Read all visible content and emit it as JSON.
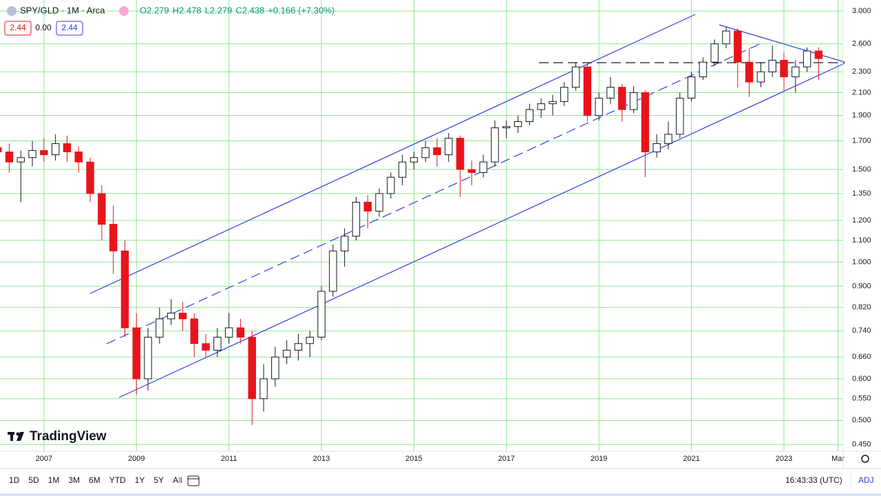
{
  "header": {
    "symbol": "SPY/GLD · 1M · Arca",
    "ohlc": [
      "O2.279",
      "H2.478",
      "L2.279",
      "C2.438",
      "+0.166 (+7.30%)"
    ],
    "badges": [
      "2.44",
      "0.00",
      "2.44"
    ],
    "logo": "TradingView"
  },
  "toolbar": {
    "ranges": [
      "1D",
      "5D",
      "1M",
      "3M",
      "6M",
      "YTD",
      "1Y",
      "5Y",
      "All"
    ],
    "time": "16:43:33 (UTC)",
    "adj": "ADJ"
  },
  "chart_data": {
    "type": "candlestick",
    "log_scale": true,
    "grid": true,
    "up_color": "#ffffff",
    "up_border": "#131722",
    "down_color": "#e8141b",
    "grid_color": "#8ee88e",
    "xlim": [
      2006.05,
      2024.28
    ],
    "ylim": [
      0.437,
      3.15
    ],
    "xticks": [
      2007,
      2009,
      2011,
      2013,
      2015,
      2017,
      2019,
      2021,
      2023,
      {
        "value": 2024.17,
        "label": "Mar"
      }
    ],
    "yticks": [
      {
        "value": 0.45,
        "label": "0.450"
      },
      {
        "value": 0.5,
        "label": "0.500"
      },
      {
        "value": 0.55,
        "label": "0.550"
      },
      {
        "value": 0.6,
        "label": "0.600"
      },
      {
        "value": 0.66,
        "label": "0.660"
      },
      {
        "value": 0.74,
        "label": "0.740"
      },
      {
        "value": 0.82,
        "label": "0.820"
      },
      {
        "value": 0.9,
        "label": "0.900"
      },
      {
        "value": 1,
        "label": "1.000"
      },
      {
        "value": 1.1,
        "label": "1.100"
      },
      {
        "value": 1.2,
        "label": "1.200"
      },
      {
        "value": 1.35,
        "label": "1.350"
      },
      {
        "value": 1.5,
        "label": "1.500"
      },
      {
        "value": 1.7,
        "label": "1.700"
      },
      {
        "value": 1.9,
        "label": "1.900"
      },
      {
        "value": 2.1,
        "label": "2.100"
      },
      {
        "value": 2.3,
        "label": "2.300"
      },
      {
        "value": 2.6,
        "label": "2.600"
      },
      {
        "value": 3,
        "label": "3.000"
      }
    ],
    "x": [
      2006.0,
      2006.25,
      2006.5,
      2006.75,
      2007.0,
      2007.25,
      2007.5,
      2007.75,
      2008.0,
      2008.25,
      2008.5,
      2008.75,
      2009.0,
      2009.25,
      2009.5,
      2009.75,
      2010.0,
      2010.25,
      2010.5,
      2010.75,
      2011.0,
      2011.25,
      2011.5,
      2011.75,
      2012.0,
      2012.25,
      2012.5,
      2012.75,
      2013.0,
      2013.25,
      2013.5,
      2013.75,
      2014.0,
      2014.25,
      2014.5,
      2014.75,
      2015.0,
      2015.25,
      2015.5,
      2015.75,
      2016.0,
      2016.25,
      2016.5,
      2016.75,
      2017.0,
      2017.25,
      2017.5,
      2017.75,
      2018.0,
      2018.25,
      2018.5,
      2018.75,
      2019.0,
      2019.25,
      2019.5,
      2019.75,
      2020.0,
      2020.25,
      2020.5,
      2020.75,
      2021.0,
      2021.25,
      2021.5,
      2021.75,
      2022.0,
      2022.25,
      2022.5,
      2022.75,
      2023.0,
      2023.25,
      2023.5,
      2023.75
    ],
    "open": [
      1.65,
      1.62,
      1.55,
      1.58,
      1.63,
      1.6,
      1.68,
      1.62,
      1.55,
      1.35,
      1.18,
      1.05,
      0.75,
      0.6,
      0.72,
      0.78,
      0.8,
      0.78,
      0.7,
      0.68,
      0.72,
      0.75,
      0.72,
      0.55,
      0.6,
      0.66,
      0.68,
      0.7,
      0.72,
      0.88,
      1.05,
      1.12,
      1.3,
      1.25,
      1.35,
      1.45,
      1.55,
      1.58,
      1.65,
      1.6,
      1.72,
      1.5,
      1.48,
      1.55,
      1.8,
      1.81,
      1.85,
      1.95,
      2.0,
      2.02,
      2.15,
      2.35,
      1.9,
      2.05,
      2.15,
      1.95,
      2.1,
      1.62,
      1.68,
      1.75,
      2.05,
      2.25,
      2.4,
      2.6,
      2.75,
      2.4,
      2.2,
      2.3,
      2.42,
      2.25,
      2.35,
      2.52
    ],
    "high": [
      1.72,
      1.68,
      1.63,
      1.7,
      1.72,
      1.75,
      1.74,
      1.66,
      1.58,
      1.4,
      1.28,
      1.1,
      0.8,
      0.75,
      0.82,
      0.85,
      0.84,
      0.8,
      0.73,
      0.75,
      0.8,
      0.78,
      0.74,
      0.64,
      0.69,
      0.71,
      0.73,
      0.74,
      0.9,
      1.08,
      1.16,
      1.33,
      1.34,
      1.38,
      1.48,
      1.6,
      1.62,
      1.7,
      1.72,
      1.76,
      1.74,
      1.56,
      1.6,
      1.86,
      1.86,
      1.9,
      2.0,
      2.05,
      2.08,
      2.2,
      2.4,
      2.38,
      2.1,
      2.25,
      2.18,
      2.16,
      2.12,
      1.75,
      1.85,
      2.1,
      2.3,
      2.45,
      2.65,
      2.8,
      2.78,
      2.55,
      2.4,
      2.58,
      2.5,
      2.42,
      2.56,
      2.56
    ],
    "low": [
      1.56,
      1.48,
      1.3,
      1.52,
      1.55,
      1.56,
      1.55,
      1.48,
      1.3,
      1.1,
      0.95,
      0.72,
      0.56,
      0.57,
      0.7,
      0.76,
      0.74,
      0.66,
      0.66,
      0.66,
      0.7,
      0.7,
      0.49,
      0.52,
      0.58,
      0.64,
      0.65,
      0.66,
      0.71,
      0.86,
      0.98,
      1.1,
      1.16,
      1.22,
      1.32,
      1.4,
      1.5,
      1.55,
      1.52,
      1.55,
      1.33,
      1.4,
      1.45,
      1.52,
      1.72,
      1.76,
      1.82,
      1.88,
      1.9,
      1.98,
      2.12,
      1.85,
      1.86,
      2.0,
      1.85,
      1.92,
      1.45,
      1.58,
      1.64,
      1.72,
      2.02,
      2.22,
      2.36,
      2.55,
      2.15,
      2.06,
      2.15,
      2.25,
      2.12,
      2.1,
      2.3,
      2.22
    ],
    "close": [
      1.62,
      1.55,
      1.58,
      1.63,
      1.6,
      1.68,
      1.62,
      1.55,
      1.35,
      1.18,
      1.05,
      0.75,
      0.6,
      0.72,
      0.78,
      0.8,
      0.78,
      0.7,
      0.68,
      0.72,
      0.75,
      0.72,
      0.55,
      0.6,
      0.66,
      0.68,
      0.7,
      0.72,
      0.88,
      1.05,
      1.12,
      1.3,
      1.25,
      1.35,
      1.45,
      1.55,
      1.58,
      1.65,
      1.6,
      1.72,
      1.5,
      1.48,
      1.55,
      1.8,
      1.81,
      1.85,
      1.95,
      2.0,
      2.02,
      2.15,
      2.35,
      1.9,
      2.05,
      2.15,
      1.95,
      2.1,
      1.62,
      1.68,
      1.75,
      2.05,
      2.25,
      2.4,
      2.6,
      2.75,
      2.4,
      2.2,
      2.3,
      2.42,
      2.25,
      2.35,
      2.52,
      2.438
    ]
  }
}
